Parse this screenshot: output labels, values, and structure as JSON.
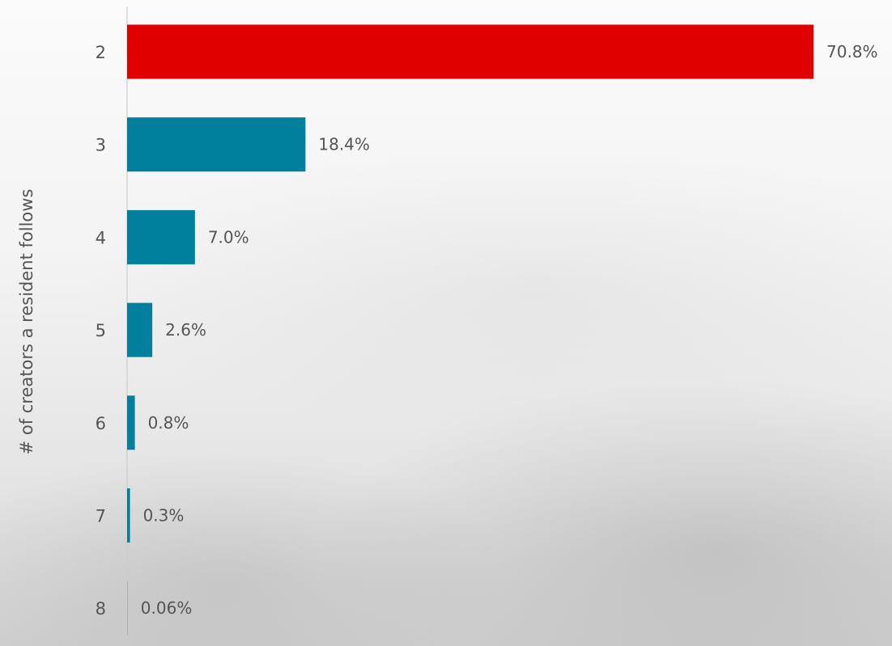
{
  "chart_data": {
    "type": "bar",
    "orientation": "horizontal",
    "title": "",
    "xlabel": "",
    "ylabel": "# of creators a resident follows",
    "categories": [
      "2",
      "3",
      "4",
      "5",
      "6",
      "7",
      "8"
    ],
    "values": [
      70.8,
      18.4,
      7.0,
      2.6,
      0.8,
      0.3,
      0.06
    ],
    "value_labels": [
      "70.8%",
      "18.4%",
      "7.0%",
      "2.6%",
      "0.8%",
      "0.3%",
      "0.06%"
    ],
    "xlim": [
      0,
      70.8
    ],
    "grid": false,
    "legend": "none",
    "highlight_index": 0,
    "colors": {
      "highlight": "#e00000",
      "default": "#00809d",
      "axis": "#cccccc",
      "text": "#555555"
    }
  }
}
